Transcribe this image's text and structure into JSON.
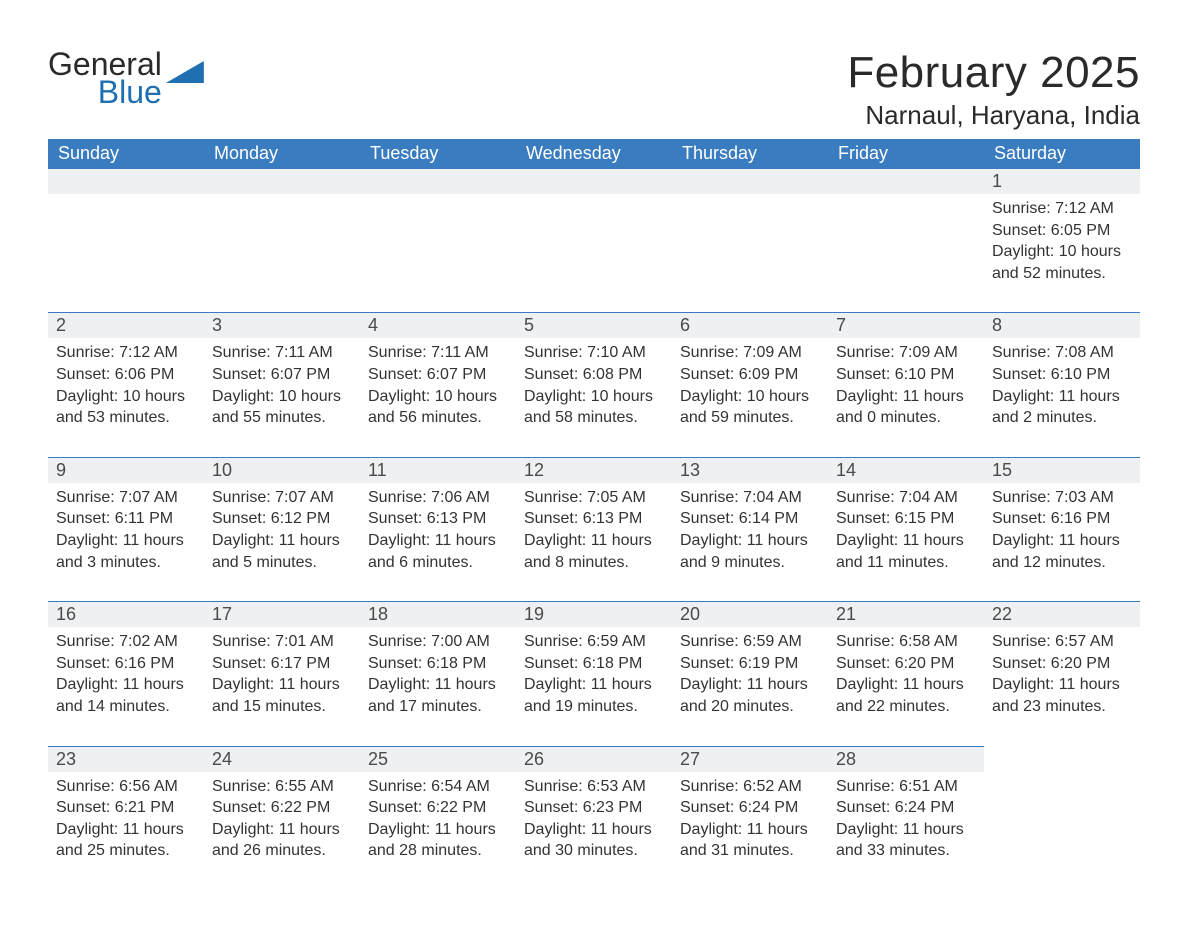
{
  "brand": {
    "word1": "General",
    "word2": "Blue"
  },
  "title": "February 2025",
  "location": "Narnaul, Haryana, India",
  "colors": {
    "header_bg": "#3a7cc0",
    "header_text": "#ffffff",
    "daybar_bg": "#eef0f1",
    "daybar_border": "#3a7cc0",
    "body_text": "#333333",
    "brand_blue": "#1f6fb2",
    "page_bg": "#ffffff"
  },
  "layout": {
    "columns": 7,
    "rows": 5,
    "first_weekday_index": 6
  },
  "weekdays": [
    "Sunday",
    "Monday",
    "Tuesday",
    "Wednesday",
    "Thursday",
    "Friday",
    "Saturday"
  ],
  "days": [
    {
      "n": 1,
      "sunrise": "7:12 AM",
      "sunset": "6:05 PM",
      "daylight": "10 hours and 52 minutes."
    },
    {
      "n": 2,
      "sunrise": "7:12 AM",
      "sunset": "6:06 PM",
      "daylight": "10 hours and 53 minutes."
    },
    {
      "n": 3,
      "sunrise": "7:11 AM",
      "sunset": "6:07 PM",
      "daylight": "10 hours and 55 minutes."
    },
    {
      "n": 4,
      "sunrise": "7:11 AM",
      "sunset": "6:07 PM",
      "daylight": "10 hours and 56 minutes."
    },
    {
      "n": 5,
      "sunrise": "7:10 AM",
      "sunset": "6:08 PM",
      "daylight": "10 hours and 58 minutes."
    },
    {
      "n": 6,
      "sunrise": "7:09 AM",
      "sunset": "6:09 PM",
      "daylight": "10 hours and 59 minutes."
    },
    {
      "n": 7,
      "sunrise": "7:09 AM",
      "sunset": "6:10 PM",
      "daylight": "11 hours and 0 minutes."
    },
    {
      "n": 8,
      "sunrise": "7:08 AM",
      "sunset": "6:10 PM",
      "daylight": "11 hours and 2 minutes."
    },
    {
      "n": 9,
      "sunrise": "7:07 AM",
      "sunset": "6:11 PM",
      "daylight": "11 hours and 3 minutes."
    },
    {
      "n": 10,
      "sunrise": "7:07 AM",
      "sunset": "6:12 PM",
      "daylight": "11 hours and 5 minutes."
    },
    {
      "n": 11,
      "sunrise": "7:06 AM",
      "sunset": "6:13 PM",
      "daylight": "11 hours and 6 minutes."
    },
    {
      "n": 12,
      "sunrise": "7:05 AM",
      "sunset": "6:13 PM",
      "daylight": "11 hours and 8 minutes."
    },
    {
      "n": 13,
      "sunrise": "7:04 AM",
      "sunset": "6:14 PM",
      "daylight": "11 hours and 9 minutes."
    },
    {
      "n": 14,
      "sunrise": "7:04 AM",
      "sunset": "6:15 PM",
      "daylight": "11 hours and 11 minutes."
    },
    {
      "n": 15,
      "sunrise": "7:03 AM",
      "sunset": "6:16 PM",
      "daylight": "11 hours and 12 minutes."
    },
    {
      "n": 16,
      "sunrise": "7:02 AM",
      "sunset": "6:16 PM",
      "daylight": "11 hours and 14 minutes."
    },
    {
      "n": 17,
      "sunrise": "7:01 AM",
      "sunset": "6:17 PM",
      "daylight": "11 hours and 15 minutes."
    },
    {
      "n": 18,
      "sunrise": "7:00 AM",
      "sunset": "6:18 PM",
      "daylight": "11 hours and 17 minutes."
    },
    {
      "n": 19,
      "sunrise": "6:59 AM",
      "sunset": "6:18 PM",
      "daylight": "11 hours and 19 minutes."
    },
    {
      "n": 20,
      "sunrise": "6:59 AM",
      "sunset": "6:19 PM",
      "daylight": "11 hours and 20 minutes."
    },
    {
      "n": 21,
      "sunrise": "6:58 AM",
      "sunset": "6:20 PM",
      "daylight": "11 hours and 22 minutes."
    },
    {
      "n": 22,
      "sunrise": "6:57 AM",
      "sunset": "6:20 PM",
      "daylight": "11 hours and 23 minutes."
    },
    {
      "n": 23,
      "sunrise": "6:56 AM",
      "sunset": "6:21 PM",
      "daylight": "11 hours and 25 minutes."
    },
    {
      "n": 24,
      "sunrise": "6:55 AM",
      "sunset": "6:22 PM",
      "daylight": "11 hours and 26 minutes."
    },
    {
      "n": 25,
      "sunrise": "6:54 AM",
      "sunset": "6:22 PM",
      "daylight": "11 hours and 28 minutes."
    },
    {
      "n": 26,
      "sunrise": "6:53 AM",
      "sunset": "6:23 PM",
      "daylight": "11 hours and 30 minutes."
    },
    {
      "n": 27,
      "sunrise": "6:52 AM",
      "sunset": "6:24 PM",
      "daylight": "11 hours and 31 minutes."
    },
    {
      "n": 28,
      "sunrise": "6:51 AM",
      "sunset": "6:24 PM",
      "daylight": "11 hours and 33 minutes."
    }
  ],
  "labels": {
    "sunrise": "Sunrise:",
    "sunset": "Sunset:",
    "daylight": "Daylight:"
  }
}
